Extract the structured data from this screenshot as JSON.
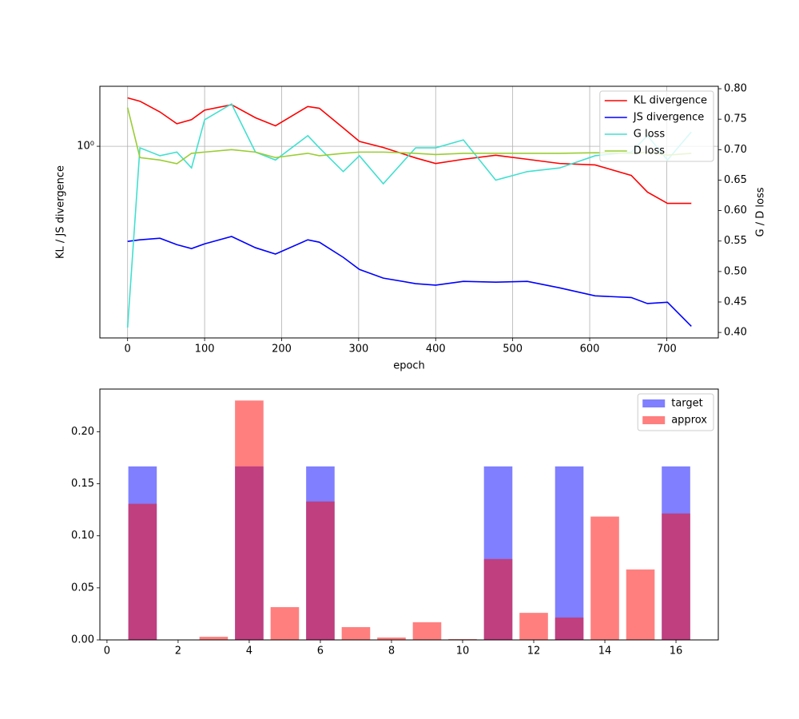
{
  "chart_data": [
    {
      "type": "line",
      "x_label": "epoch",
      "y_label": "KL / JS divergence",
      "y2_label": "G / D loss",
      "x": [
        0,
        16,
        42,
        64,
        83,
        100,
        135,
        166,
        192,
        234,
        249,
        280,
        301,
        332,
        374,
        400,
        436,
        478,
        519,
        561,
        607,
        654,
        675,
        701,
        732
      ],
      "series": [
        {
          "name": "KL divergence",
          "color": "#ff0000",
          "values": [
            1.48,
            1.44,
            1.32,
            1.2,
            1.24,
            1.34,
            1.4,
            1.26,
            1.18,
            1.38,
            1.36,
            1.16,
            1.04,
            0.99,
            0.91,
            0.87,
            0.9,
            0.93,
            0.9,
            0.87,
            0.86,
            0.79,
            0.69,
            0.63,
            0.63
          ]
        },
        {
          "name": "JS divergence",
          "color": "#0000ff",
          "values": [
            0.463,
            0.469,
            0.475,
            0.451,
            0.437,
            0.454,
            0.482,
            0.44,
            0.418,
            0.469,
            0.46,
            0.407,
            0.369,
            0.344,
            0.329,
            0.325,
            0.335,
            0.333,
            0.335,
            0.318,
            0.298,
            0.294,
            0.28,
            0.283,
            0.233
          ]
        },
        {
          "name": "G loss",
          "color": "#40e0d0",
          "axis": "y2",
          "values": [
            0.408,
            0.703,
            0.69,
            0.696,
            0.67,
            0.749,
            0.775,
            0.696,
            0.683,
            0.723,
            0.703,
            0.664,
            0.69,
            0.644,
            0.703,
            0.703,
            0.716,
            0.65,
            0.664,
            0.67,
            0.69,
            0.696,
            0.723,
            0.683,
            0.729
          ]
        },
        {
          "name": "D loss",
          "color": "#9acd32",
          "axis": "y2",
          "values": [
            0.769,
            0.687,
            0.683,
            0.677,
            0.694,
            0.696,
            0.7,
            0.696,
            0.687,
            0.694,
            0.69,
            0.694,
            0.696,
            0.696,
            0.694,
            0.692,
            0.694,
            0.694,
            0.694,
            0.694,
            0.695,
            0.694,
            0.696,
            0.691,
            0.694
          ]
        }
      ],
      "xlim": [
        -36,
        767
      ],
      "xticks": [
        0,
        100,
        200,
        300,
        400,
        500,
        600,
        700
      ],
      "ylog": true,
      "ylim": [
        0.212,
        1.625
      ],
      "yticks": [
        {
          "value": 1,
          "label": "10⁰"
        }
      ],
      "y2lim": [
        0.391,
        0.804
      ],
      "y2ticks": [
        {
          "value": 0.4,
          "label": "0.40"
        },
        0.45,
        {
          "value": 0.5,
          "label": "0.50"
        },
        0.55,
        {
          "value": 0.6,
          "label": "0.60"
        },
        0.65,
        {
          "value": 0.7,
          "label": "0.70"
        },
        0.75,
        {
          "value": 0.8,
          "label": "0.80"
        }
      ],
      "grid": true,
      "legend": "upper right"
    },
    {
      "type": "bar",
      "x": [
        1,
        2,
        3,
        4,
        5,
        6,
        7,
        8,
        9,
        10,
        11,
        12,
        13,
        14,
        15,
        16
      ],
      "series": [
        {
          "name": "target",
          "color": "#0000ff",
          "alpha": 0.5,
          "values": [
            0.1667,
            0,
            0,
            0.1667,
            0,
            0.1667,
            0,
            0,
            0,
            0,
            0.1667,
            0,
            0.1667,
            0,
            0,
            0.1667
          ]
        },
        {
          "name": "approx",
          "color": "#ff0000",
          "alpha": 0.5,
          "values": [
            0.1308,
            0,
            0.003,
            0.23,
            0.0315,
            0.133,
            0.0123,
            0.0023,
            0.017,
            0.0008,
            0.0777,
            0.026,
            0.0215,
            0.1185,
            0.0677,
            0.1215
          ]
        }
      ],
      "xlim": [
        -0.2,
        17.19
      ],
      "xticks": [
        0,
        2,
        4,
        6,
        8,
        10,
        12,
        14,
        16
      ],
      "ylim": [
        0,
        0.241
      ],
      "yticks": [
        {
          "value": 0,
          "label": "0.00"
        },
        0.05,
        {
          "value": 0.1,
          "label": "0.10"
        },
        0.15,
        {
          "value": 0.2,
          "label": "0.20"
        }
      ],
      "grid": false,
      "legend": "upper right"
    }
  ]
}
